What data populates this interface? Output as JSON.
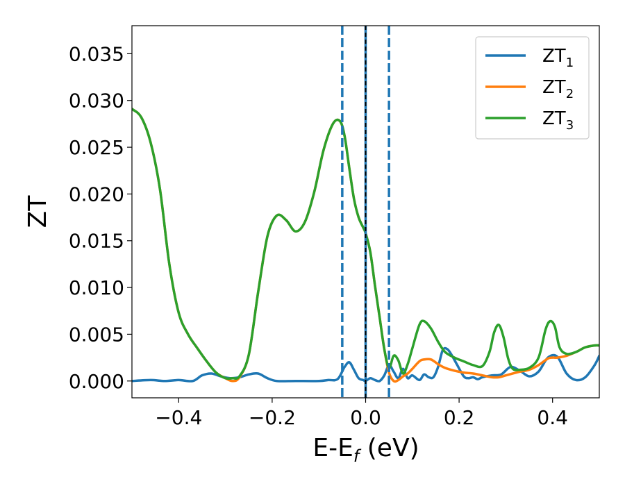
{
  "chart_data": {
    "type": "line",
    "xlabel": "E-E",
    "xlabel_sub": "f",
    "xlabel_unit": " (eV)",
    "ylabel": "ZT",
    "xlim": [
      -0.5,
      0.5
    ],
    "ylim": [
      -0.0018,
      0.038
    ],
    "xticks": [
      -0.4,
      -0.2,
      0.0,
      0.2,
      0.4
    ],
    "xtick_labels": [
      "−0.4",
      "−0.2",
      "0.0",
      "0.2",
      "0.4"
    ],
    "yticks": [
      0.0,
      0.005,
      0.01,
      0.015,
      0.02,
      0.025,
      0.03,
      0.035
    ],
    "ytick_labels": [
      "0.000",
      "0.005",
      "0.010",
      "0.015",
      "0.020",
      "0.025",
      "0.030",
      "0.035"
    ],
    "legend_position": "top-right",
    "vlines": [
      {
        "x": -0.05,
        "style": "dashed",
        "color": "#1f77b4"
      },
      {
        "x": 0.0,
        "style": "solid",
        "color": "#1f77b4"
      },
      {
        "x": 0.0,
        "style": "dashed",
        "color": "#000000"
      },
      {
        "x": 0.05,
        "style": "dashed",
        "color": "#1f77b4"
      }
    ],
    "series": [
      {
        "name": "ZT",
        "sub": "1",
        "color": "#1f77b4",
        "x": [
          -0.5,
          -0.46,
          -0.43,
          -0.4,
          -0.37,
          -0.35,
          -0.33,
          -0.31,
          -0.29,
          -0.27,
          -0.25,
          -0.23,
          -0.21,
          -0.19,
          -0.15,
          -0.1,
          -0.08,
          -0.06,
          -0.045,
          -0.035,
          -0.025,
          -0.015,
          -0.005,
          0.0,
          0.01,
          0.02,
          0.03,
          0.04,
          0.05,
          0.06,
          0.07,
          0.08,
          0.09,
          0.1,
          0.115,
          0.125,
          0.135,
          0.145,
          0.155,
          0.165,
          0.175,
          0.185,
          0.195,
          0.21,
          0.22,
          0.23,
          0.24,
          0.25,
          0.27,
          0.29,
          0.31,
          0.33,
          0.35,
          0.37,
          0.39,
          0.41,
          0.43,
          0.45,
          0.47,
          0.49,
          0.5
        ],
        "y": [
          0.0,
          0.0001,
          0.0,
          0.0001,
          0.0,
          0.0006,
          0.0008,
          0.0005,
          0.0003,
          0.0004,
          0.0007,
          0.0008,
          0.0003,
          0.0,
          0.0,
          0.0,
          0.0001,
          0.0002,
          0.0015,
          0.002,
          0.0012,
          0.0003,
          0.0001,
          0.0,
          0.0003,
          0.0001,
          0.0,
          0.0006,
          0.0017,
          0.001,
          0.0003,
          0.0013,
          0.0003,
          0.0006,
          0.0001,
          0.0007,
          0.0004,
          0.0004,
          0.0015,
          0.0033,
          0.0034,
          0.0027,
          0.0018,
          0.0005,
          0.0003,
          0.0004,
          0.0002,
          0.0004,
          0.0006,
          0.0007,
          0.0015,
          0.0011,
          0.0005,
          0.001,
          0.0025,
          0.0026,
          0.0008,
          0.0001,
          0.0004,
          0.0017,
          0.0027
        ]
      },
      {
        "name": "ZT",
        "sub": "2",
        "color": "#ff7f0e",
        "x": [
          -0.5,
          -0.48,
          -0.46,
          -0.44,
          -0.42,
          -0.4,
          -0.38,
          -0.36,
          -0.34,
          -0.32,
          -0.3,
          -0.285,
          -0.27,
          -0.25,
          -0.23,
          -0.21,
          -0.19,
          -0.17,
          -0.15,
          -0.13,
          -0.11,
          -0.09,
          -0.07,
          -0.055,
          -0.045,
          -0.035,
          -0.025,
          -0.015,
          -0.005,
          0.0,
          0.01,
          0.02,
          0.03,
          0.04,
          0.05,
          0.06,
          0.07,
          0.08,
          0.09,
          0.1,
          0.115,
          0.125,
          0.14,
          0.155,
          0.17,
          0.19,
          0.21,
          0.23,
          0.25,
          0.27,
          0.285,
          0.3,
          0.315,
          0.33,
          0.35,
          0.37,
          0.39,
          0.4,
          0.41,
          0.43,
          0.45,
          0.47,
          0.49,
          0.5
        ],
        "y": [
          0.0291,
          0.0282,
          0.0255,
          0.0205,
          0.0125,
          0.0073,
          0.005,
          0.0035,
          0.0021,
          0.0009,
          0.0003,
          0.0,
          0.0004,
          0.0028,
          0.0095,
          0.0155,
          0.0177,
          0.0172,
          0.016,
          0.017,
          0.0202,
          0.0247,
          0.0275,
          0.0278,
          0.0262,
          0.0228,
          0.0195,
          0.0175,
          0.0164,
          0.0158,
          0.0138,
          0.0102,
          0.0068,
          0.0034,
          0.0009,
          0.0,
          0.0001,
          0.0005,
          0.0008,
          0.0013,
          0.0021,
          0.0023,
          0.0023,
          0.0018,
          0.0014,
          0.0011,
          0.0009,
          0.0008,
          0.0006,
          0.0004,
          0.0004,
          0.0006,
          0.0008,
          0.001,
          0.0012,
          0.0017,
          0.0024,
          0.0025,
          0.0025,
          0.0027,
          0.0031,
          0.0036,
          0.0038,
          0.0038
        ]
      },
      {
        "name": "ZT",
        "sub": "3",
        "color": "#2ca02c",
        "x": [
          -0.5,
          -0.48,
          -0.46,
          -0.44,
          -0.42,
          -0.4,
          -0.38,
          -0.36,
          -0.34,
          -0.32,
          -0.3,
          -0.285,
          -0.27,
          -0.25,
          -0.23,
          -0.21,
          -0.19,
          -0.17,
          -0.15,
          -0.13,
          -0.11,
          -0.09,
          -0.07,
          -0.055,
          -0.045,
          -0.035,
          -0.025,
          -0.015,
          -0.005,
          0.0,
          0.01,
          0.02,
          0.03,
          0.04,
          0.05,
          0.06,
          0.07,
          0.08,
          0.09,
          0.1,
          0.115,
          0.125,
          0.14,
          0.155,
          0.17,
          0.19,
          0.21,
          0.23,
          0.25,
          0.265,
          0.275,
          0.285,
          0.295,
          0.305,
          0.315,
          0.33,
          0.35,
          0.37,
          0.385,
          0.395,
          0.405,
          0.415,
          0.43,
          0.45,
          0.47,
          0.49,
          0.5
        ],
        "y": [
          0.0291,
          0.0282,
          0.0255,
          0.0205,
          0.0125,
          0.0073,
          0.005,
          0.0035,
          0.0021,
          0.0009,
          0.0003,
          0.0003,
          0.0005,
          0.0028,
          0.0095,
          0.0155,
          0.0177,
          0.0172,
          0.016,
          0.017,
          0.0202,
          0.0247,
          0.0275,
          0.0278,
          0.0262,
          0.0228,
          0.0195,
          0.0175,
          0.0164,
          0.0158,
          0.0138,
          0.0102,
          0.0068,
          0.0034,
          0.0014,
          0.0027,
          0.0022,
          0.0008,
          0.0018,
          0.0035,
          0.006,
          0.0064,
          0.0056,
          0.0042,
          0.0031,
          0.0025,
          0.0021,
          0.0017,
          0.0016,
          0.0031,
          0.0052,
          0.006,
          0.0047,
          0.0024,
          0.0013,
          0.0012,
          0.0014,
          0.0025,
          0.0055,
          0.0064,
          0.0058,
          0.0036,
          0.0029,
          0.0031,
          0.0036,
          0.0038,
          0.0038
        ]
      }
    ]
  }
}
